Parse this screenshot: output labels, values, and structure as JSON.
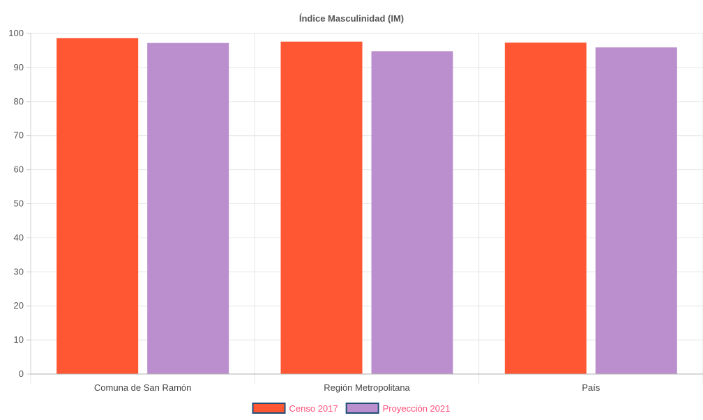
{
  "chart_data": {
    "type": "bar",
    "title": "Índice Masculinidad (IM)",
    "xlabel": "",
    "ylabel": "",
    "categories": [
      "Comuna de San Ramón",
      "Región Metropolitana",
      "País"
    ],
    "series": [
      {
        "name": "Censo 2017",
        "values": [
          98.6,
          97.6,
          97.3
        ],
        "color": "#ff5733"
      },
      {
        "name": "Proyección 2021",
        "values": [
          97.2,
          94.8,
          95.9
        ],
        "color": "#bb8fce"
      }
    ],
    "ylim": [
      0,
      100
    ],
    "yticks": [
      "0",
      "10",
      "20",
      "30",
      "40",
      "50",
      "60",
      "70",
      "80",
      "90",
      "100"
    ],
    "grid": true,
    "legend_position": "bottom",
    "legend_text_color": "#ff4f7a",
    "legend_border_color": "#1f4e79"
  }
}
